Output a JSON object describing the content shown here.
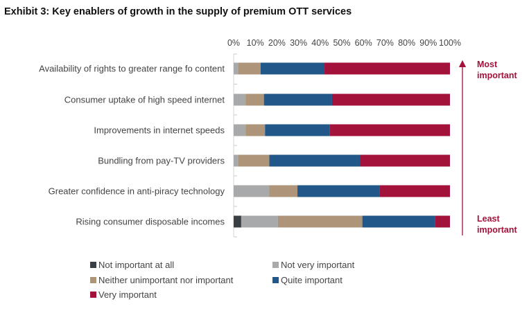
{
  "title": "Exhibit 3: Key enablers of growth in the supply of premium OTT services",
  "colors": {
    "not_important_at_all": "#3a3f45",
    "not_very_important": "#a8a9ab",
    "neither": "#ae9479",
    "quite_important": "#225789",
    "very_important": "#a3123a",
    "annotation": "#a3123a"
  },
  "annotations": {
    "most": [
      "Most",
      "important"
    ],
    "least": [
      "Least",
      "important"
    ]
  },
  "chart_data": {
    "type": "bar",
    "orientation": "horizontal",
    "stacked": true,
    "title": "Exhibit 3: Key enablers of growth in the supply of premium OTT services",
    "xlabel": "",
    "ylabel": "",
    "xlim": [
      0,
      100
    ],
    "x_ticks": [
      "0%",
      "10%",
      "20%",
      "30%",
      "40%",
      "50%",
      "60%",
      "70%",
      "80%",
      "90%",
      "100%"
    ],
    "x_tick_values": [
      0,
      10,
      20,
      30,
      40,
      50,
      60,
      70,
      80,
      90,
      100
    ],
    "grid": false,
    "legend_position": "bottom",
    "categories": [
      "Availability of rights to greater range fo content",
      "Consumer uptake of high speed internet",
      "Improvements in internet speeds",
      "Bundling from pay-TV providers",
      "Greater confidence in anti-piracy technology",
      "Rising consumer disposable incomes"
    ],
    "series": [
      {
        "name": "Not important at all",
        "color": "#3a3f45",
        "values": [
          0,
          0,
          0,
          0,
          0,
          3.5
        ]
      },
      {
        "name": "Not very important",
        "color": "#a8a9ab",
        "values": [
          2,
          5.5,
          5.5,
          2,
          16.5,
          17
        ]
      },
      {
        "name": "Neither unimportant nor important",
        "color": "#ae9479",
        "values": [
          10.5,
          8.5,
          9,
          14.5,
          13,
          39
        ]
      },
      {
        "name": "Quite important",
        "color": "#225789",
        "values": [
          29.5,
          31.5,
          30,
          42,
          38,
          33.5
        ]
      },
      {
        "name": "Very important",
        "color": "#a3123a",
        "values": [
          58,
          54.5,
          55.5,
          41.5,
          32.5,
          7
        ]
      }
    ]
  }
}
